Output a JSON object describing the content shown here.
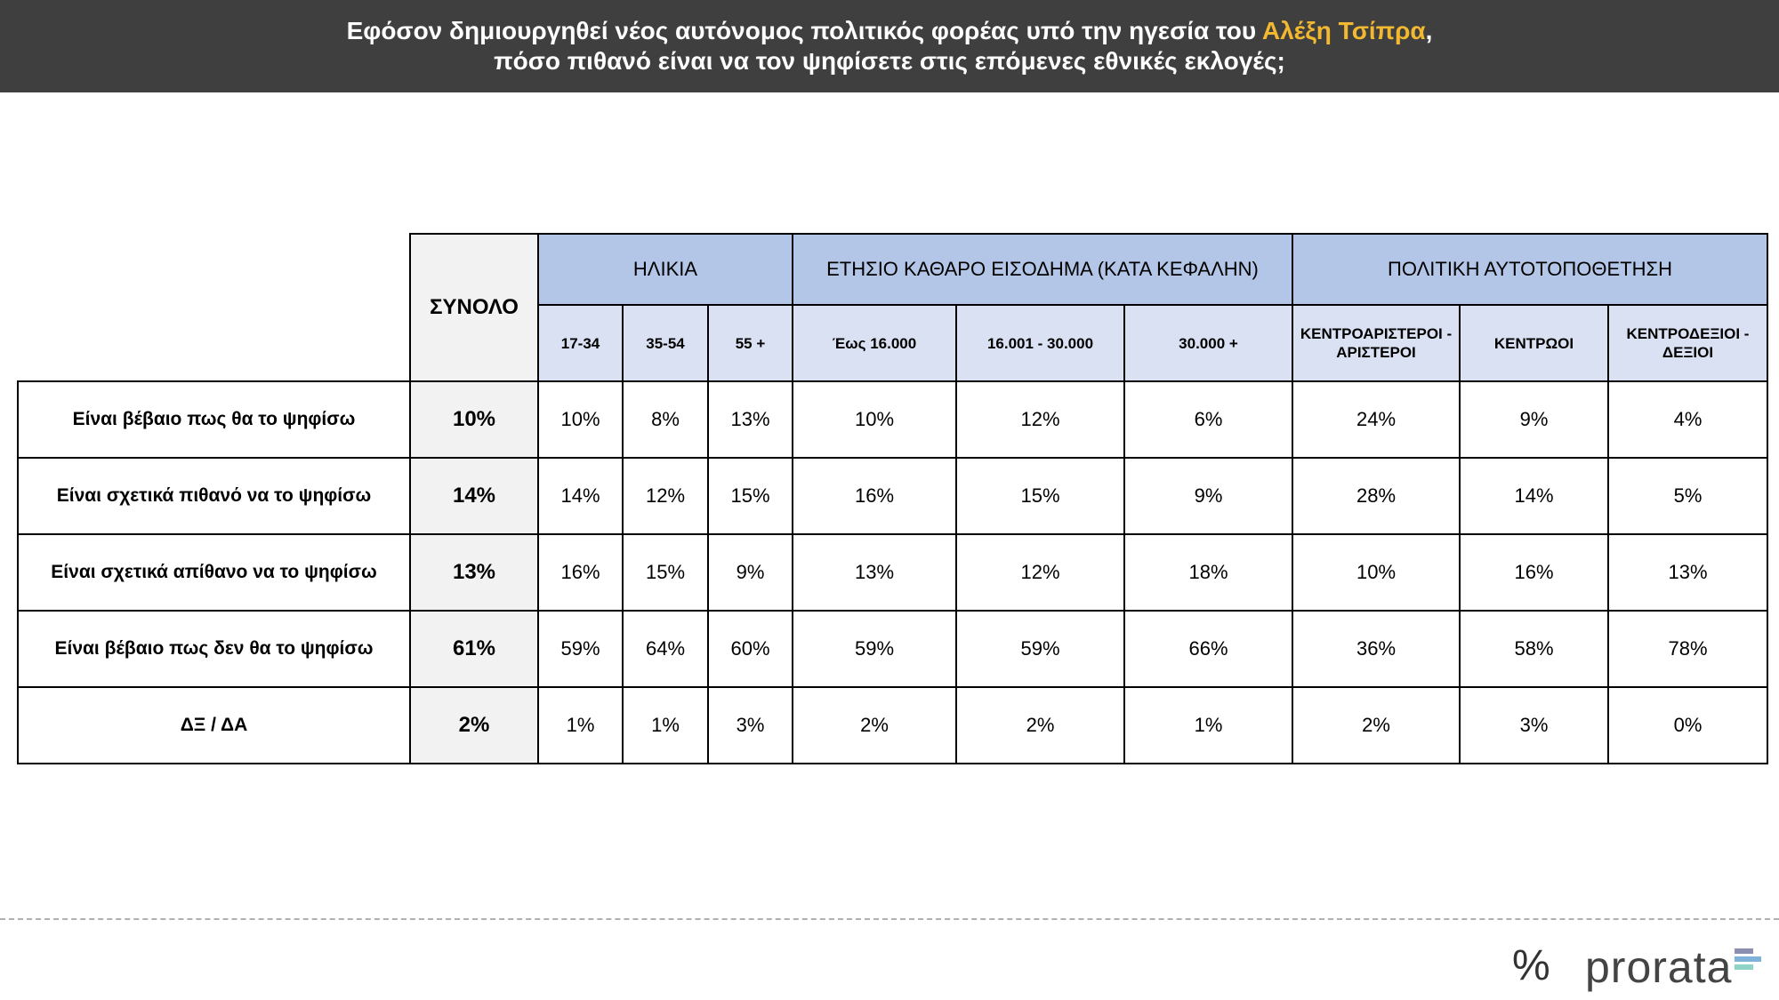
{
  "header": {
    "title_line1_pre": "Εφόσον δημιουργηθεί νέος αυτόνομος πολιτικός φορέας υπό την ηγεσία του ",
    "title_highlight": "Αλέξη Τσίπρα",
    "title_line1_post": ",",
    "title_line2": "πόσο πιθανό είναι να τον ψηφίσετε στις επόμενες εθνικές εκλογές;"
  },
  "colors": {
    "title_bg": "#3f3f3f",
    "highlight": "#f2b830",
    "group_header": "#b4c6e7",
    "sub_header": "#d9e1f2",
    "total_column": "#f2f2f2"
  },
  "chart_data": {
    "type": "table",
    "total_label": "ΣΥΝΟΛΟ",
    "groups": [
      {
        "label": "ΗΛΙΚΙΑ",
        "columns": [
          "17-34",
          "35-54",
          "55 +"
        ]
      },
      {
        "label": "ΕΤΗΣΙΟ ΚΑΘΑΡΟ ΕΙΣΟΔΗΜΑ (ΚΑΤΑ ΚΕΦΑΛΗΝ)",
        "columns": [
          "Έως 16.000",
          "16.001 - 30.000",
          "30.000 +"
        ]
      },
      {
        "label": "ΠΟΛΙΤΙΚΗ ΑΥΤΟΤΟΠΟΘΕΤΗΣΗ",
        "columns": [
          "ΚΕΝΤΡΟΑΡΙΣΤΕΡΟΙ - ΑΡΙΣΤΕΡΟΙ",
          "ΚΕΝΤΡΩΟΙ",
          "ΚΕΝΤΡΟΔΕΞΙΟΙ - ΔΕΞΙΟΙ"
        ]
      }
    ],
    "rows": [
      {
        "label": "Είναι βέβαιο πως θα το ψηφίσω",
        "total": "10%",
        "values": [
          "10%",
          "8%",
          "13%",
          "10%",
          "12%",
          "6%",
          "24%",
          "9%",
          "4%"
        ]
      },
      {
        "label": "Είναι σχετικά πιθανό να το ψηφίσω",
        "total": "14%",
        "values": [
          "14%",
          "12%",
          "15%",
          "16%",
          "15%",
          "9%",
          "28%",
          "14%",
          "5%"
        ]
      },
      {
        "label": "Είναι σχετικά απίθανο να το ψηφίσω",
        "total": "13%",
        "values": [
          "16%",
          "15%",
          "9%",
          "13%",
          "12%",
          "18%",
          "10%",
          "16%",
          "13%"
        ]
      },
      {
        "label": "Είναι βέβαιο πως δεν θα το ψηφίσω",
        "total": "61%",
        "values": [
          "59%",
          "64%",
          "60%",
          "59%",
          "59%",
          "66%",
          "36%",
          "58%",
          "78%"
        ]
      },
      {
        "label": "ΔΞ / ΔΑ",
        "total": "2%",
        "values": [
          "1%",
          "1%",
          "3%",
          "2%",
          "2%",
          "1%",
          "2%",
          "3%",
          "0%"
        ]
      }
    ]
  },
  "footer": {
    "logo_symbol": "%",
    "logo_text": "prorata",
    "logo_bar_colors": [
      "#8c8fb0",
      "#7fb2d8",
      "#8fd3c6"
    ]
  }
}
